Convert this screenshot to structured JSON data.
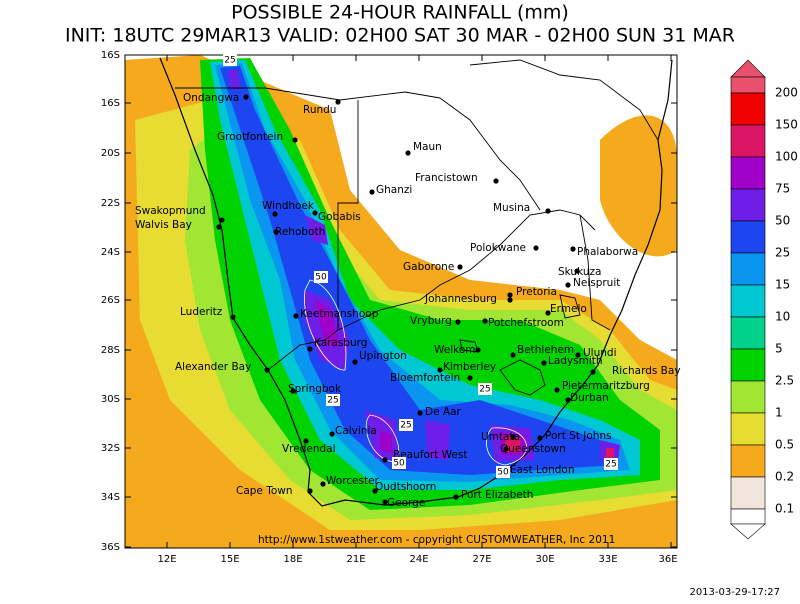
{
  "title": "POSSIBLE 24-HOUR  RAINFALL (mm)",
  "subtitle": "INIT: 18UTC 29MAR13  VALID: 02H00 SAT 30 MAR  - 02H00 SUN 31 MAR",
  "map": {
    "lat_labels": [
      "16S",
      "16S",
      "20S",
      "22S",
      "24S",
      "26S",
      "28S",
      "30S",
      "32S",
      "34S",
      "36S"
    ],
    "lon_labels": [
      "12E",
      "15E",
      "18E",
      "21E",
      "24E",
      "27E",
      "30E",
      "33E",
      "36E"
    ],
    "cities": [
      "Ondangwa",
      "Rundu",
      "Grootfontein",
      "Maun",
      "Francistown",
      "Ghanzi",
      "Windhoek",
      "Gobabis",
      "Swakopmund",
      "Walvis Bay",
      "Musina",
      "Rehoboth",
      "Phalaborwa",
      "Polokwane",
      "Gaborone",
      "Skukuza",
      "Nelspruit",
      "Pretoria",
      "Johannesburg",
      "Luderitz",
      "Keetmanshoop",
      "Ermelo",
      "Vryburg",
      "Potchefstroom",
      "Welkom",
      "Bethlehem",
      "Ulundi",
      "Ladysmith",
      "Karasburg",
      "Upington",
      "Alexander Bay",
      "Kimberley",
      "Richards Bay",
      "Bloemfontein",
      "Springbok",
      "Pietermaritzburg",
      "Durban",
      "De Aar",
      "Calvinia",
      "Vredendal",
      "Umtata",
      "Port St Johns",
      "Queenstown",
      "Beaufort West",
      "East London",
      "Worcester",
      "Oudtshoorn",
      "Cape Town",
      "George",
      "Port Elizabeth"
    ],
    "contour_labels": [
      "25",
      "50",
      "25",
      "25",
      "50",
      "25",
      "50",
      "25"
    ],
    "credit": "http://www.1stweather.com - copyright CUSTOMWEATHER, Inc 2011"
  },
  "legend": {
    "levels": [
      200,
      150,
      100,
      75,
      50,
      25,
      15,
      10,
      5,
      2.5,
      1,
      0.5,
      0.2,
      0.1
    ],
    "colors": [
      "#e8506e",
      "#f00000",
      "#dc1464",
      "#a000c8",
      "#6e1ee6",
      "#1e46f0",
      "#0a96f0",
      "#00c8d2",
      "#00d28c",
      "#00d200",
      "#a0e632",
      "#e6dc32",
      "#f5aa1e",
      "#f0e6dc",
      "#ffffff"
    ]
  },
  "timestamp": "2013-03-29-17:27"
}
